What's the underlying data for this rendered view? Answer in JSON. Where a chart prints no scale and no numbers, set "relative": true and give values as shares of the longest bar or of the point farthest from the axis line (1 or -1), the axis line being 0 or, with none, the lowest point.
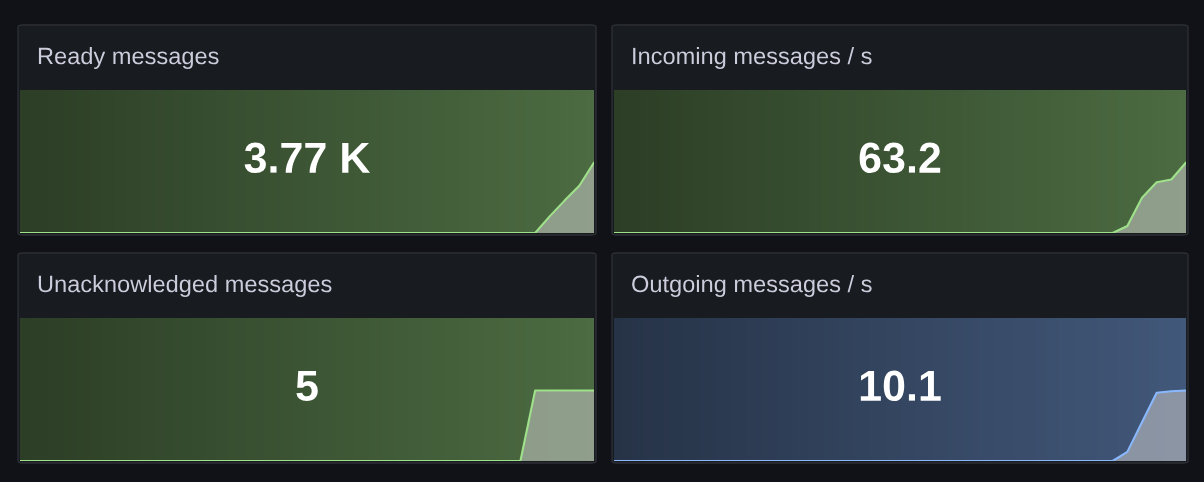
{
  "chart_data": [
    {
      "type": "area",
      "title": "Ready messages",
      "relative": true,
      "annotations": [
        "3.77 K"
      ],
      "categories": [
        null,
        null,
        null,
        null,
        null,
        null,
        null,
        null,
        null,
        null,
        null,
        null,
        null,
        null,
        null,
        null,
        null,
        null,
        null,
        null,
        null,
        null,
        null,
        null,
        null,
        null,
        null,
        null,
        null,
        null,
        null,
        null,
        null,
        null,
        null,
        null,
        null,
        null,
        null,
        null
      ],
      "series": [
        {
          "color": "#9fe08a",
          "values": [
            0,
            0,
            0,
            0,
            0,
            0,
            0,
            0,
            0,
            0,
            0,
            0,
            0,
            0,
            0,
            0,
            0,
            0,
            0,
            0,
            0,
            0,
            0,
            0,
            0,
            0,
            0,
            0,
            0,
            0,
            0,
            0,
            0,
            0,
            0,
            0,
            0.24,
            0.46,
            0.67,
            1
          ]
        }
      ]
    },
    {
      "type": "area",
      "title": "Incoming messages / s",
      "relative": true,
      "annotations": [
        "63.2"
      ],
      "categories": [
        null,
        null,
        null,
        null,
        null,
        null,
        null,
        null,
        null,
        null,
        null,
        null,
        null,
        null,
        null,
        null,
        null,
        null,
        null,
        null,
        null,
        null,
        null,
        null,
        null,
        null,
        null,
        null,
        null,
        null,
        null,
        null,
        null,
        null,
        null,
        null,
        null,
        null,
        null,
        null
      ],
      "series": [
        {
          "color": "#9fe08a",
          "values": [
            0,
            0,
            0,
            0,
            0,
            0,
            0,
            0,
            0,
            0,
            0,
            0,
            0,
            0,
            0,
            0,
            0,
            0,
            0,
            0,
            0,
            0,
            0,
            0,
            0,
            0,
            0,
            0,
            0,
            0,
            0,
            0,
            0,
            0,
            0,
            0.1,
            0.5,
            0.72,
            0.76,
            1
          ]
        }
      ]
    },
    {
      "type": "area",
      "title": "Unacknowledged messages",
      "relative": true,
      "annotations": [
        "5"
      ],
      "categories": [
        null,
        null,
        null,
        null,
        null,
        null,
        null,
        null,
        null,
        null,
        null,
        null,
        null,
        null,
        null,
        null,
        null,
        null,
        null,
        null,
        null,
        null,
        null,
        null,
        null,
        null,
        null,
        null,
        null,
        null,
        null,
        null,
        null,
        null,
        null,
        null,
        null,
        null,
        null,
        null
      ],
      "series": [
        {
          "color": "#9fe08a",
          "values": [
            0,
            0,
            0,
            0,
            0,
            0,
            0,
            0,
            0,
            0,
            0,
            0,
            0,
            0,
            0,
            0,
            0,
            0,
            0,
            0,
            0,
            0,
            0,
            0,
            0,
            0,
            0,
            0,
            0,
            0,
            0,
            0,
            0,
            0,
            0,
            1,
            1,
            1,
            1,
            1
          ]
        }
      ]
    },
    {
      "type": "area",
      "title": "Outgoing messages / s",
      "relative": true,
      "annotations": [
        "10.1"
      ],
      "categories": [
        null,
        null,
        null,
        null,
        null,
        null,
        null,
        null,
        null,
        null,
        null,
        null,
        null,
        null,
        null,
        null,
        null,
        null,
        null,
        null,
        null,
        null,
        null,
        null,
        null,
        null,
        null,
        null,
        null,
        null,
        null,
        null,
        null,
        null,
        null,
        null,
        null,
        null,
        null,
        null
      ],
      "series": [
        {
          "color": "#8ab8ff",
          "values": [
            0,
            0,
            0,
            0,
            0,
            0,
            0,
            0,
            0,
            0,
            0,
            0,
            0,
            0,
            0,
            0,
            0,
            0,
            0,
            0,
            0,
            0,
            0,
            0,
            0,
            0,
            0,
            0,
            0,
            0,
            0,
            0,
            0,
            0,
            0,
            0.13,
            0.55,
            0.97,
            0.99,
            1
          ]
        }
      ]
    }
  ]
}
